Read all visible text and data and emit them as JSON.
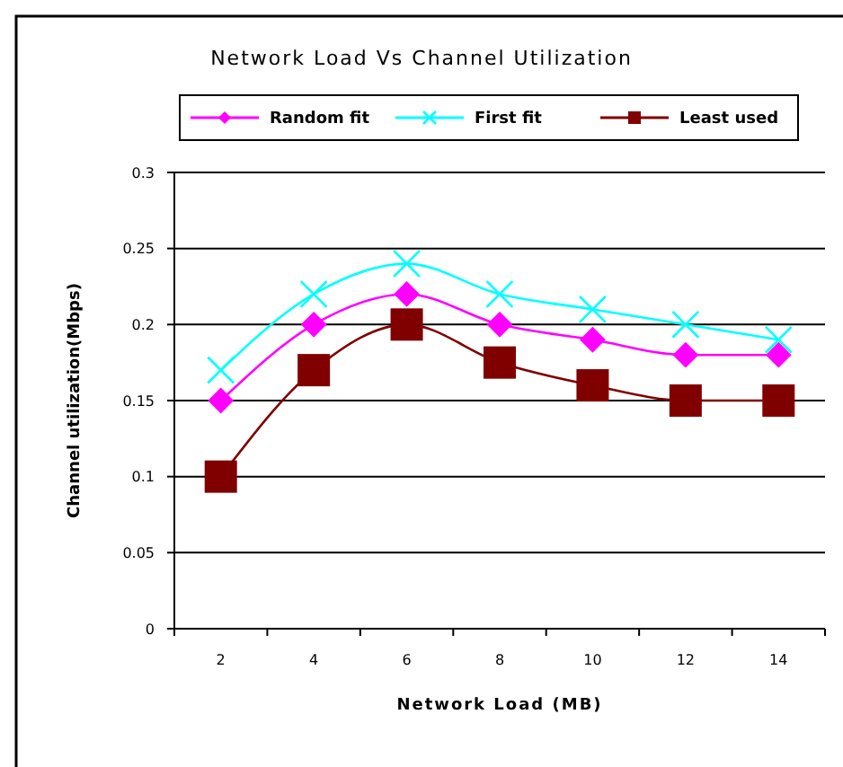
{
  "chart_data": {
    "type": "line",
    "title": "Network Load Vs Channel Utilization",
    "xlabel": "Network Load (MB)",
    "ylabel": "Channel utilization(Mbps)",
    "categories": [
      "2",
      "4",
      "6",
      "8",
      "10",
      "12",
      "14"
    ],
    "series": [
      {
        "name": "Random fit",
        "color": "#ff00ff",
        "marker": "diamond",
        "values": [
          0.15,
          0.2,
          0.22,
          0.2,
          0.19,
          0.18,
          0.18
        ]
      },
      {
        "name": "First fit",
        "color": "#00ffff",
        "marker": "cross",
        "values": [
          0.17,
          0.22,
          0.24,
          0.22,
          0.21,
          0.2,
          0.19
        ]
      },
      {
        "name": "Least used",
        "color": "#800000",
        "marker": "square",
        "values": [
          0.1,
          0.17,
          0.2,
          0.175,
          0.16,
          0.15,
          0.15
        ]
      }
    ],
    "ylim": [
      0,
      0.3
    ],
    "yticks": [
      0,
      0.05,
      0.1,
      0.15,
      0.2,
      0.25,
      0.3
    ],
    "grid": "y",
    "legend": "top"
  }
}
